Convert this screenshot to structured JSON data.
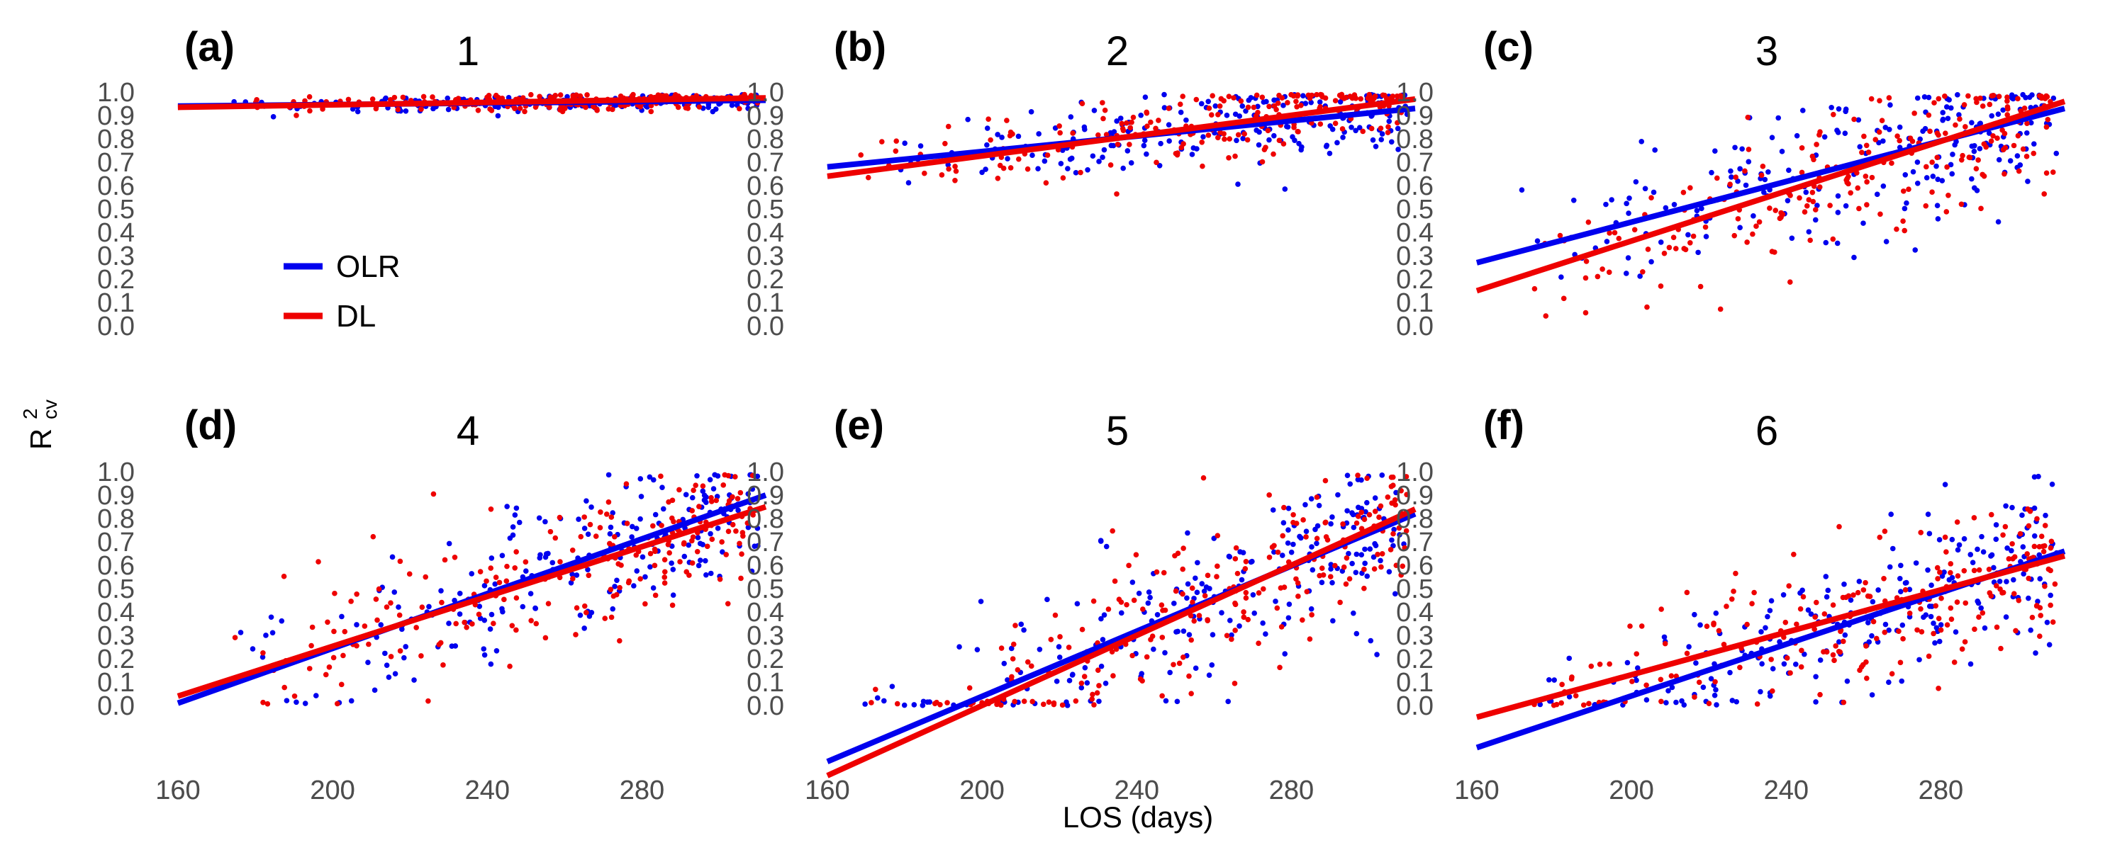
{
  "figure": {
    "ylabel_main": "R",
    "ylabel_sup": "2",
    "ylabel_sub": "cv",
    "xlabel": "LOS (days)"
  },
  "legend": {
    "placement": "inside panel (a), lower-left",
    "items": [
      {
        "label": "OLR",
        "color": "#0000ee"
      },
      {
        "label": "DL",
        "color": "#ee0000"
      }
    ]
  },
  "colors": {
    "OLR": "#0000ee",
    "DL": "#ee0000",
    "tick_text": "#4d4d4d"
  },
  "chart_data": [
    {
      "type": "scatter",
      "panel_label": "(a)",
      "title": "1",
      "x_ticks": [
        160,
        200,
        240,
        280
      ],
      "y_ticks": [
        0.0,
        0.1,
        0.2,
        0.3,
        0.4,
        0.5,
        0.6,
        0.7,
        0.8,
        0.9,
        1.0
      ],
      "xlim": [
        158,
        312
      ],
      "ylim": [
        0.0,
        1.0
      ],
      "grid": false,
      "series": [
        {
          "name": "OLR",
          "color": "#0000ee",
          "fit_line": {
            "x": [
              160,
              312
            ],
            "y": [
              0.94,
              0.965
            ]
          },
          "points_shape": "dense band near y≈0.95 from x≈175 to 310"
        },
        {
          "name": "DL",
          "color": "#ee0000",
          "fit_line": {
            "x": [
              160,
              312
            ],
            "y": [
              0.935,
              0.975
            ]
          },
          "points_shape": "dense band near y≈0.95 from x≈175 to 310"
        }
      ]
    },
    {
      "type": "scatter",
      "panel_label": "(b)",
      "title": "2",
      "x_ticks": [
        160,
        200,
        240,
        280
      ],
      "y_ticks": [
        0.0,
        0.1,
        0.2,
        0.3,
        0.4,
        0.5,
        0.6,
        0.7,
        0.8,
        0.9,
        1.0
      ],
      "xlim": [
        158,
        312
      ],
      "ylim": [
        0.0,
        1.0
      ],
      "grid": false,
      "series": [
        {
          "name": "OLR",
          "color": "#0000ee",
          "fit_line": {
            "x": [
              160,
              312
            ],
            "y": [
              0.68,
              0.93
            ]
          }
        },
        {
          "name": "DL",
          "color": "#ee0000",
          "fit_line": {
            "x": [
              160,
              312
            ],
            "y": [
              0.64,
              0.97
            ]
          }
        }
      ]
    },
    {
      "type": "scatter",
      "panel_label": "(c)",
      "title": "3",
      "x_ticks": [
        160,
        200,
        240,
        280
      ],
      "y_ticks": [
        0.0,
        0.1,
        0.2,
        0.3,
        0.4,
        0.5,
        0.6,
        0.7,
        0.8,
        0.9,
        1.0
      ],
      "xlim": [
        158,
        312
      ],
      "ylim": [
        0.0,
        1.0
      ],
      "grid": false,
      "series": [
        {
          "name": "OLR",
          "color": "#0000ee",
          "fit_line": {
            "x": [
              160,
              312
            ],
            "y": [
              0.27,
              0.93
            ]
          }
        },
        {
          "name": "DL",
          "color": "#ee0000",
          "fit_line": {
            "x": [
              160,
              312
            ],
            "y": [
              0.15,
              0.96
            ]
          }
        }
      ]
    },
    {
      "type": "scatter",
      "panel_label": "(d)",
      "title": "4",
      "x_ticks": [
        160,
        200,
        240,
        280
      ],
      "y_ticks": [
        0.0,
        0.1,
        0.2,
        0.3,
        0.4,
        0.5,
        0.6,
        0.7,
        0.8,
        0.9,
        1.0
      ],
      "xlim": [
        158,
        312
      ],
      "ylim": [
        0.0,
        1.0
      ],
      "grid": false,
      "series": [
        {
          "name": "OLR",
          "color": "#0000ee",
          "fit_line": {
            "x": [
              160,
              312
            ],
            "y": [
              0.01,
              0.9
            ]
          }
        },
        {
          "name": "DL",
          "color": "#ee0000",
          "fit_line": {
            "x": [
              160,
              312
            ],
            "y": [
              0.04,
              0.85
            ]
          }
        }
      ]
    },
    {
      "type": "scatter",
      "panel_label": "(e)",
      "title": "5",
      "x_ticks": [
        160,
        200,
        240,
        280
      ],
      "y_ticks": [
        0.0,
        0.1,
        0.2,
        0.3,
        0.4,
        0.5,
        0.6,
        0.7,
        0.8,
        0.9,
        1.0
      ],
      "xlim": [
        158,
        312
      ],
      "ylim": [
        0.0,
        1.0
      ],
      "grid": false,
      "series": [
        {
          "name": "OLR",
          "color": "#0000ee",
          "fit_line": {
            "x": [
              160,
              312
            ],
            "y": [
              -0.24,
              0.82
            ]
          }
        },
        {
          "name": "DL",
          "color": "#ee0000",
          "fit_line": {
            "x": [
              160,
              312
            ],
            "y": [
              -0.3,
              0.84
            ]
          }
        }
      ]
    },
    {
      "type": "scatter",
      "panel_label": "(f)",
      "title": "6",
      "x_ticks": [
        160,
        200,
        240,
        280
      ],
      "y_ticks": [
        0.0,
        0.1,
        0.2,
        0.3,
        0.4,
        0.5,
        0.6,
        0.7,
        0.8,
        0.9,
        1.0
      ],
      "xlim": [
        158,
        312
      ],
      "ylim": [
        0.0,
        1.0
      ],
      "grid": false,
      "series": [
        {
          "name": "OLR",
          "color": "#0000ee",
          "fit_line": {
            "x": [
              160,
              312
            ],
            "y": [
              -0.18,
              0.66
            ]
          }
        },
        {
          "name": "DL",
          "color": "#ee0000",
          "fit_line": {
            "x": [
              160,
              312
            ],
            "y": [
              -0.05,
              0.64
            ]
          }
        }
      ]
    }
  ]
}
